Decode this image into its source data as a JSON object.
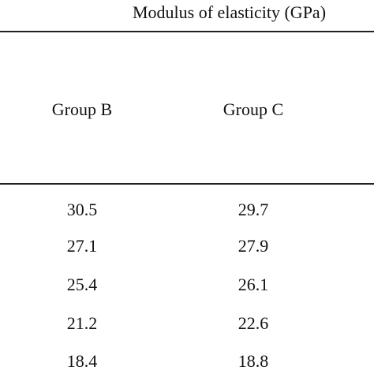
{
  "table": {
    "spanner_header": "Modulus of elasticity (GPa)",
    "columns": [
      "Group B",
      "Group C"
    ],
    "rows": [
      [
        "30.5",
        "29.7"
      ],
      [
        "27.1",
        "27.9"
      ],
      [
        "25.4",
        "26.1"
      ],
      [
        "21.2",
        "22.6"
      ],
      [
        "18.4",
        "18.8"
      ]
    ]
  }
}
